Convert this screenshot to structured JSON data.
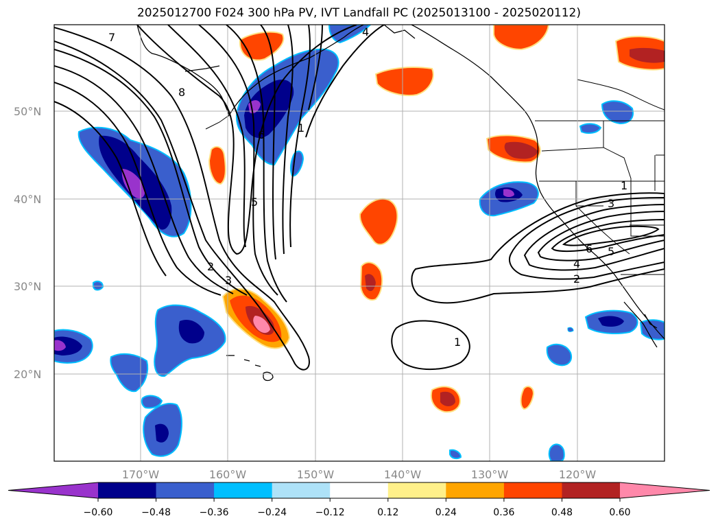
{
  "title": "2025012700 F024 300 hPa PV, IVT Landfall PC (2025013100 - 2025020112)",
  "map": {
    "lat_labels": [
      "50°N",
      "40°N",
      "30°N",
      "20°N"
    ],
    "lon_labels": [
      "170°W",
      "160°W",
      "150°W",
      "140°W",
      "130°W",
      "120°W"
    ],
    "contour_labels": [
      "7",
      "8",
      "6",
      "1",
      "5",
      "2",
      "3",
      "1",
      "3",
      "6",
      "5",
      "4",
      "2",
      "1",
      "4"
    ]
  },
  "colorbar": {
    "ticks": [
      "−0.60",
      "−0.48",
      "−0.36",
      "−0.24",
      "−0.12",
      "0.12",
      "0.24",
      "0.36",
      "0.48",
      "0.60"
    ],
    "colors": [
      "#9933cc",
      "#00008b",
      "#3a5fcd",
      "#00bfff",
      "#aee2f8",
      "#ffffff",
      "#fff08a",
      "#ffa500",
      "#ff4500",
      "#b22222",
      "#ff88aa"
    ]
  }
}
